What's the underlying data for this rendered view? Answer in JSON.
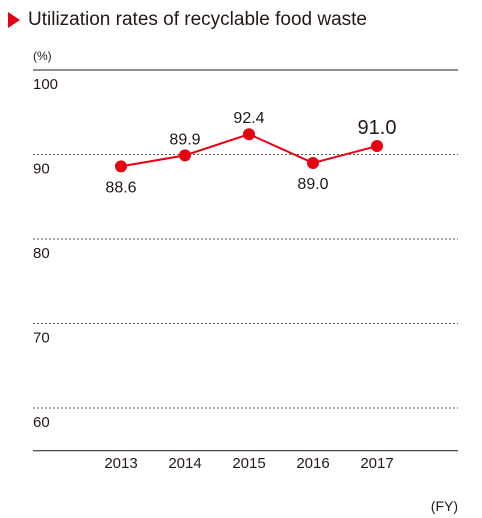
{
  "chart_data": {
    "type": "line",
    "title": "Utilization rates of recyclable food waste",
    "unit": "(%)",
    "xlabel": "(FY)",
    "categories": [
      "2013",
      "2014",
      "2015",
      "2016",
      "2017"
    ],
    "values": [
      88.6,
      89.9,
      92.4,
      89.0,
      91.0
    ],
    "data_labels": [
      "88.6",
      "89.9",
      "92.4",
      "89.0",
      "91.0"
    ],
    "ylim": [
      55,
      100
    ],
    "yticks": [
      100,
      90,
      80,
      70,
      60
    ],
    "grid": true,
    "grid_style": "dotted",
    "colors": {
      "series": "#e60012",
      "marker": "#e60012",
      "text": "#231815",
      "grid": "#555555"
    }
  }
}
